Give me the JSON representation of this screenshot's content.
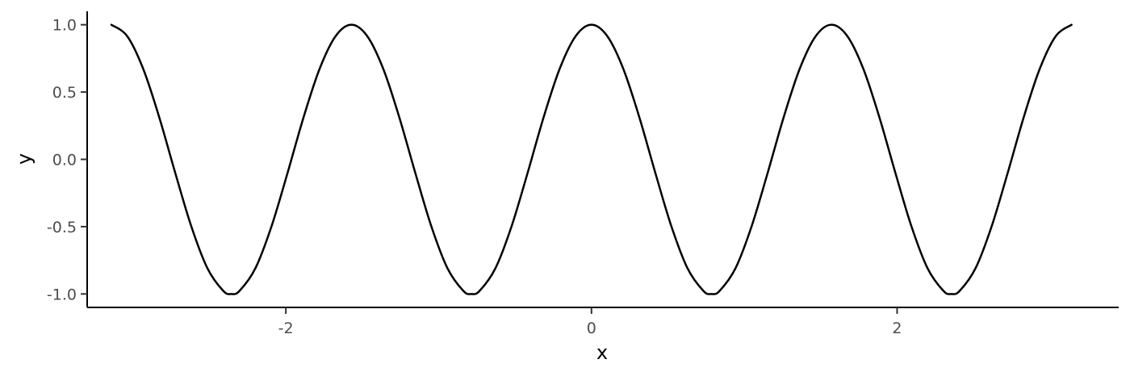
{
  "chart_data": {
    "type": "line",
    "title": "",
    "xlabel": "x",
    "ylabel": "y",
    "xlim": [
      -3.3,
      3.45
    ],
    "ylim": [
      -1.1,
      1.1
    ],
    "x_ticks": [
      {
        "value": -2,
        "label": "-2"
      },
      {
        "value": 0,
        "label": "0"
      },
      {
        "value": 2,
        "label": "2"
      }
    ],
    "y_ticks": [
      {
        "value": 1.0,
        "label": "1.0"
      },
      {
        "value": 0.5,
        "label": "0.5"
      },
      {
        "value": 0.0,
        "label": "0.0"
      },
      {
        "value": -0.5,
        "label": "-0.5"
      },
      {
        "value": -1.0,
        "label": "-1.0"
      }
    ],
    "grid": false,
    "series": [
      {
        "color": "#000000",
        "x": [
          -3.1416,
          -3.0369,
          -2.9322,
          -2.8274,
          -2.7227,
          -2.618,
          -2.5133,
          -2.4086,
          -2.3562,
          -2.3038,
          -2.1991,
          -2.0944,
          -1.9897,
          -1.885,
          -1.7802,
          -1.6755,
          -1.5708,
          -1.4661,
          -1.3614,
          -1.2566,
          -1.1519,
          -1.0472,
          -0.9425,
          -0.8378,
          -0.7854,
          -0.733,
          -0.6283,
          -0.5236,
          -0.4189,
          -0.3142,
          -0.2094,
          -0.1047,
          0.0,
          0.1047,
          0.2094,
          0.3142,
          0.4189,
          0.5236,
          0.6283,
          0.733,
          0.7854,
          0.8378,
          0.9425,
          1.0472,
          1.1519,
          1.2566,
          1.3614,
          1.4661,
          1.5708,
          1.6755,
          1.7802,
          1.885,
          1.9897,
          2.0944,
          2.1991,
          2.3038,
          2.3562,
          2.4086,
          2.5133,
          2.618,
          2.7227,
          2.8274,
          2.9322,
          3.0369,
          3.1416
        ],
        "y": [
          1.0,
          0.9135,
          0.6691,
          0.309,
          -0.1045,
          -0.5,
          -0.809,
          -0.9781,
          -1.0,
          -0.9781,
          -0.809,
          -0.5,
          -0.1045,
          0.309,
          0.6691,
          0.9135,
          1.0,
          0.9135,
          0.6691,
          0.309,
          -0.1045,
          -0.5,
          -0.809,
          -0.9781,
          -1.0,
          -0.9781,
          -0.809,
          -0.5,
          -0.1045,
          0.309,
          0.6691,
          0.9135,
          1.0,
          0.9135,
          0.6691,
          0.309,
          -0.1045,
          -0.5,
          -0.809,
          -0.9781,
          -1.0,
          -0.9781,
          -0.809,
          -0.5,
          -0.1045,
          0.309,
          0.6691,
          0.9135,
          1.0,
          0.9135,
          0.6691,
          0.309,
          -0.1045,
          -0.5,
          -0.809,
          -0.9781,
          -1.0,
          -0.9781,
          -0.809,
          -0.5,
          -0.1045,
          0.309,
          0.6691,
          0.9135,
          1.0
        ]
      }
    ]
  }
}
